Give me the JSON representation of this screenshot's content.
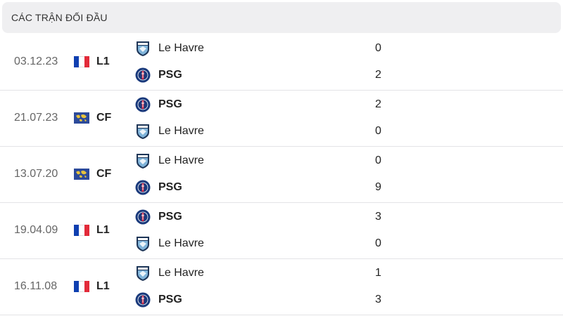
{
  "header": {
    "title": "CÁC TRẬN ĐỐI ĐẦU"
  },
  "matches": [
    {
      "date": "03.12.23",
      "comp": "L1",
      "flag": "france-flag",
      "home": {
        "name": "Le Havre",
        "score": "0",
        "logo": "le-havre"
      },
      "away": {
        "name": "PSG",
        "score": "2",
        "logo": "psg"
      }
    },
    {
      "date": "21.07.23",
      "comp": "CF",
      "flag": "world-flag",
      "home": {
        "name": "PSG",
        "score": "2",
        "logo": "psg"
      },
      "away": {
        "name": "Le Havre",
        "score": "0",
        "logo": "le-havre"
      }
    },
    {
      "date": "13.07.20",
      "comp": "CF",
      "flag": "world-flag",
      "home": {
        "name": "Le Havre",
        "score": "0",
        "logo": "le-havre"
      },
      "away": {
        "name": "PSG",
        "score": "9",
        "logo": "psg"
      }
    },
    {
      "date": "19.04.09",
      "comp": "L1",
      "flag": "france-flag",
      "home": {
        "name": "PSG",
        "score": "3",
        "logo": "psg"
      },
      "away": {
        "name": "Le Havre",
        "score": "0",
        "logo": "le-havre"
      }
    },
    {
      "date": "16.11.08",
      "comp": "L1",
      "flag": "france-flag",
      "home": {
        "name": "Le Havre",
        "score": "1",
        "logo": "le-havre"
      },
      "away": {
        "name": "PSG",
        "score": "3",
        "logo": "psg"
      }
    }
  ],
  "colors": {
    "header_bg": "#efeff1",
    "psg_blue": "#1a3a7c",
    "psg_red": "#d5213f",
    "havre_blue": "#7fb3d9",
    "havre_navy": "#1d3557",
    "france_blue": "#0f3fb0",
    "france_red": "#e22b3a"
  }
}
